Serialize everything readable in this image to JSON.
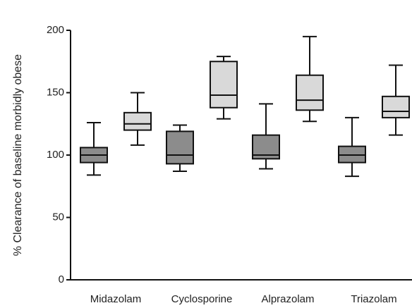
{
  "chart_data": {
    "type": "box",
    "y_label": "% Clearance of baseline morbidly obese",
    "categories": [
      "Midazolam",
      "Cyclosporine",
      "Alprazolam",
      "Triazolam"
    ],
    "series": [
      {
        "color": "#8c8c8c",
        "min": [
          84,
          87,
          89,
          83
        ],
        "q1": [
          94,
          93,
          97,
          94
        ],
        "median": [
          100,
          100,
          100,
          100
        ],
        "q3": [
          106,
          119,
          116,
          107
        ],
        "max": [
          126,
          124,
          141,
          130
        ]
      },
      {
        "color": "#d9d9d9",
        "min": [
          108,
          129,
          127,
          116
        ],
        "q1": [
          120,
          138,
          136,
          130
        ],
        "median": [
          125,
          148,
          144,
          135
        ],
        "q3": [
          134,
          175,
          164,
          147
        ],
        "max": [
          150,
          179,
          195,
          172
        ]
      }
    ],
    "ylim": [
      0,
      200
    ],
    "yticks": [
      0,
      50,
      100,
      150,
      200
    ]
  }
}
